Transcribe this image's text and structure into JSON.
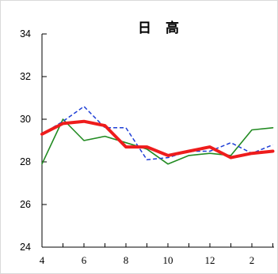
{
  "chart_data": {
    "type": "line",
    "title": "日 高",
    "xlabel": "",
    "ylabel": "",
    "ylim": [
      24,
      34
    ],
    "yticks": [
      "24",
      "26",
      "28",
      "30",
      "32",
      "34"
    ],
    "xticks": [
      "4",
      "6",
      "8",
      "10",
      "12",
      "2"
    ],
    "x": [
      4,
      5,
      6,
      7,
      8,
      9,
      10,
      11,
      12,
      13,
      14,
      15
    ],
    "series": [
      {
        "color": "#228B22",
        "style": "solid",
        "values": [
          27.9,
          30.0,
          29.0,
          29.2,
          28.9,
          28.6,
          27.9,
          28.3,
          28.4,
          28.3,
          29.5,
          29.6
        ]
      },
      {
        "color": "#1f3fd6",
        "style": "dashed",
        "values": [
          29.3,
          29.9,
          30.6,
          29.6,
          29.6,
          28.1,
          28.2,
          28.5,
          28.5,
          28.9,
          28.4,
          28.8
        ]
      },
      {
        "color": "#ee1c1c",
        "style": "thick",
        "values": [
          29.3,
          29.8,
          29.9,
          29.7,
          28.7,
          28.7,
          28.3,
          28.5,
          28.7,
          28.2,
          28.4,
          28.5
        ]
      }
    ]
  }
}
